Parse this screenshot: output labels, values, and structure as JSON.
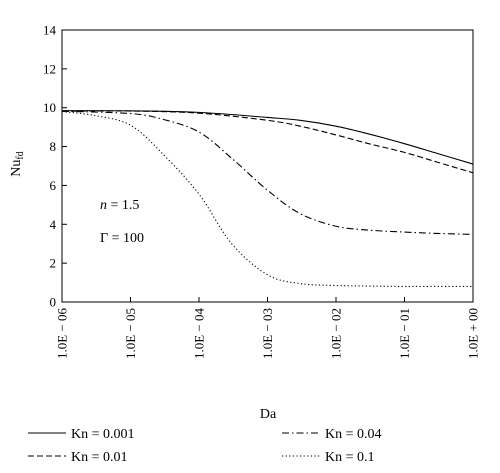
{
  "chart_data": {
    "type": "line",
    "xlabel": "Da",
    "ylabel_main": "Nu",
    "ylabel_sub": "fd",
    "x_scale": "log",
    "xlim": [
      1e-06,
      1
    ],
    "ylim": [
      0,
      14
    ],
    "x_ticks": [
      1e-06,
      1e-05,
      0.0001,
      0.001,
      0.01,
      0.1,
      1
    ],
    "x_tick_labels": [
      "1.0E − 06",
      "1.0E − 05",
      "1.0E − 04",
      "1.0E − 03",
      "1.0E − 02",
      "1.0E − 01",
      "1.0E + 00"
    ],
    "y_ticks": [
      0,
      2,
      4,
      6,
      8,
      10,
      12,
      14
    ],
    "y_tick_labels": [
      "0",
      "2",
      "4",
      "6",
      "8",
      "10",
      "12",
      "14"
    ],
    "grid": false,
    "annotations": {
      "n_label": "n",
      "n_value": " = 1.5",
      "gamma_label": "Γ = 100"
    },
    "legend_position": "bottom",
    "series": [
      {
        "name": "Kn = 0.001",
        "style": "solid",
        "x": [
          1e-06,
          1e-05,
          0.0001,
          0.001,
          0.003,
          0.01,
          0.03,
          0.1,
          0.3,
          1
        ],
        "y": [
          9.85,
          9.84,
          9.76,
          9.5,
          9.35,
          9.05,
          8.65,
          8.15,
          7.65,
          7.1
        ]
      },
      {
        "name": "Kn = 0.01",
        "style": "dashed",
        "x": [
          1e-06,
          1e-05,
          0.0001,
          0.001,
          0.003,
          0.01,
          0.03,
          0.1,
          0.3,
          1
        ],
        "y": [
          9.82,
          9.83,
          9.72,
          9.35,
          9.05,
          8.6,
          8.15,
          7.7,
          7.2,
          6.65
        ]
      },
      {
        "name": "Kn = 0.04",
        "style": "dashdot",
        "x": [
          1e-06,
          1e-05,
          3e-05,
          0.0001,
          0.0003,
          0.001,
          0.003,
          0.01,
          0.03,
          0.1,
          0.3,
          1
        ],
        "y": [
          9.82,
          9.7,
          9.4,
          8.75,
          7.4,
          5.75,
          4.55,
          3.9,
          3.7,
          3.6,
          3.53,
          3.48
        ]
      },
      {
        "name": "Kn = 0.1",
        "style": "dotted",
        "x": [
          1e-06,
          3e-06,
          1e-05,
          3e-05,
          0.0001,
          0.0003,
          0.001,
          0.003,
          0.01,
          0.03,
          0.1,
          1
        ],
        "y": [
          9.8,
          9.6,
          9.1,
          7.6,
          5.55,
          3.0,
          1.4,
          0.95,
          0.85,
          0.82,
          0.8,
          0.8
        ]
      }
    ]
  }
}
